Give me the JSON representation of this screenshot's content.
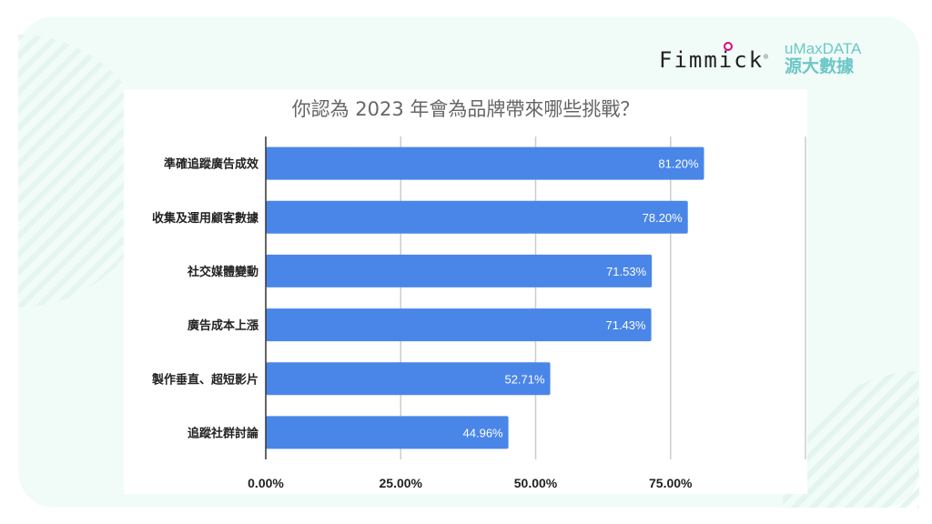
{
  "logos": {
    "fimmick": "Fimmick",
    "umaxdata_en": "uMaxDATA",
    "umaxdata_zh": "源大數據"
  },
  "chart_data": {
    "type": "bar",
    "orientation": "horizontal",
    "title": "你認為 2023 年會為品牌帶來哪些挑戰？",
    "categories": [
      "準確追蹤廣告成效",
      "收集及運用顧客數據",
      "社交媒體變動",
      "廣告成本上漲",
      "製作垂直、超短影片",
      "追蹤社群討論"
    ],
    "values": [
      81.2,
      78.2,
      71.53,
      71.43,
      52.71,
      44.96
    ],
    "data_labels": [
      "81.20%",
      "78.20%",
      "71.53%",
      "71.43%",
      "52.71%",
      "44.96%"
    ],
    "xlim": [
      0,
      100
    ],
    "x_ticks": [
      0,
      25,
      50,
      75
    ],
    "x_tick_labels": [
      "0.00%",
      "25.00%",
      "50.00%",
      "75.00%"
    ],
    "grid": true,
    "bar_color": "#4a86e8"
  }
}
